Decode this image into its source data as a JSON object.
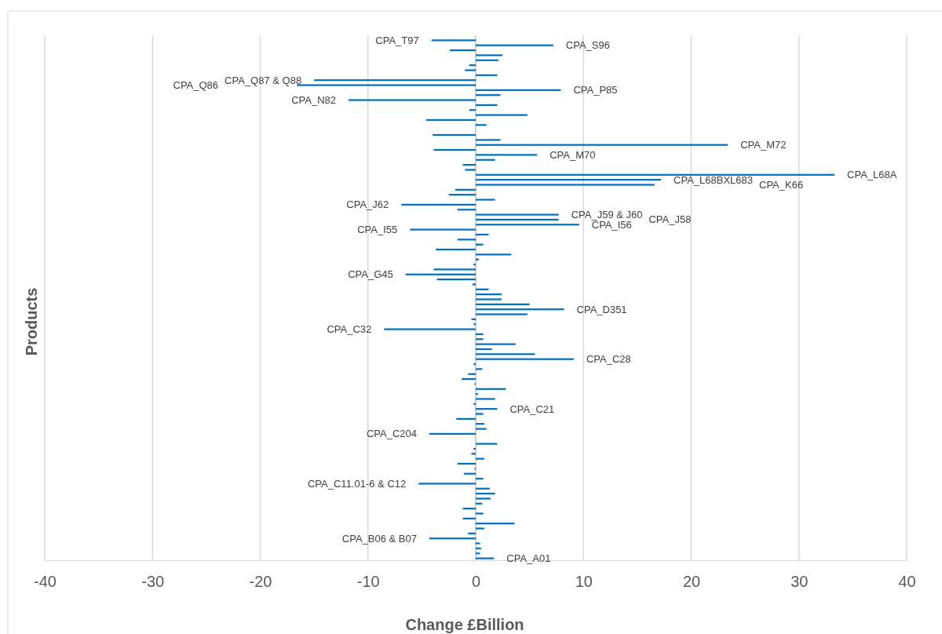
{
  "chart_data": {
    "type": "bar",
    "orientation": "horizontal",
    "xlabel": "Change £Billion",
    "ylabel": "Products",
    "categories": [
      "CPA_T97",
      "CPA_S96",
      null,
      null,
      null,
      null,
      null,
      null,
      "CPA_Q87 & Q88",
      "CPA_Q86",
      "CPA_P85",
      null,
      "CPA_N82",
      null,
      null,
      null,
      null,
      null,
      null,
      null,
      null,
      "CPA_M72",
      null,
      "CPA_M70",
      null,
      null,
      null,
      "CPA_L68A",
      "CPA_L68BXL683",
      "CPA_K66",
      null,
      null,
      null,
      "CPA_J62",
      null,
      "CPA_J59 & J60",
      "CPA_J58",
      "CPA_I56",
      "CPA_I55",
      null,
      null,
      null,
      null,
      null,
      null,
      null,
      null,
      "CPA_G45",
      null,
      null,
      null,
      null,
      null,
      null,
      "CPA_D351",
      null,
      null,
      null,
      "CPA_C32",
      null,
      null,
      null,
      null,
      null,
      "CPA_C28",
      null,
      null,
      null,
      null,
      null,
      null,
      null,
      null,
      null,
      "CPA_C21",
      null,
      null,
      null,
      null,
      "CPA_C204",
      null,
      null,
      null,
      null,
      null,
      null,
      null,
      null,
      null,
      "CPA_C11.01-6 & C12",
      null,
      null,
      null,
      null,
      null,
      null,
      null,
      null,
      null,
      null,
      "CPA_B06 & B07",
      null,
      null,
      null,
      "CPA_A01"
    ],
    "values": [
      -4.1,
      7.2,
      -2.4,
      2.5,
      2.1,
      -0.6,
      -1.0,
      2.0,
      -15.0,
      -16.6,
      7.9,
      2.3,
      -11.8,
      2.0,
      -0.6,
      4.8,
      -4.6,
      1.0,
      0,
      -4.0,
      2.3,
      23.4,
      -3.9,
      5.7,
      1.8,
      -1.2,
      -1.0,
      33.3,
      17.2,
      16.6,
      -1.9,
      -2.5,
      1.8,
      -6.9,
      -1.7,
      7.7,
      7.7,
      9.6,
      -6.1,
      1.2,
      -1.7,
      0.7,
      -3.7,
      3.3,
      0.3,
      -0.2,
      -3.9,
      -6.5,
      -3.6,
      -0.3,
      1.2,
      2.4,
      2.4,
      5.0,
      8.2,
      4.8,
      -0.4,
      -0.2,
      -8.5,
      0.7,
      0.7,
      3.7,
      1.5,
      5.5,
      9.1,
      -0.2,
      0.6,
      -0.7,
      -1.3,
      -0.1,
      2.8,
      0.2,
      1.8,
      -0.2,
      2.0,
      0.7,
      -1.8,
      0.8,
      1.0,
      -4.3,
      0,
      2.0,
      -0.2,
      -0.4,
      0.8,
      -1.7,
      -0.1,
      -1.1,
      0.7,
      -5.3,
      1.3,
      1.8,
      1.4,
      0.6,
      -1.2,
      0.7,
      -1.2,
      3.6,
      0.8,
      -0.7,
      -4.3,
      0.4,
      0.5,
      0.4,
      1.7
    ],
    "color": "#0070c0",
    "xlim": [
      -40,
      40
    ],
    "xticks": [
      -40,
      -30,
      -20,
      -10,
      0,
      10,
      20,
      30,
      40
    ],
    "grid": "x"
  }
}
